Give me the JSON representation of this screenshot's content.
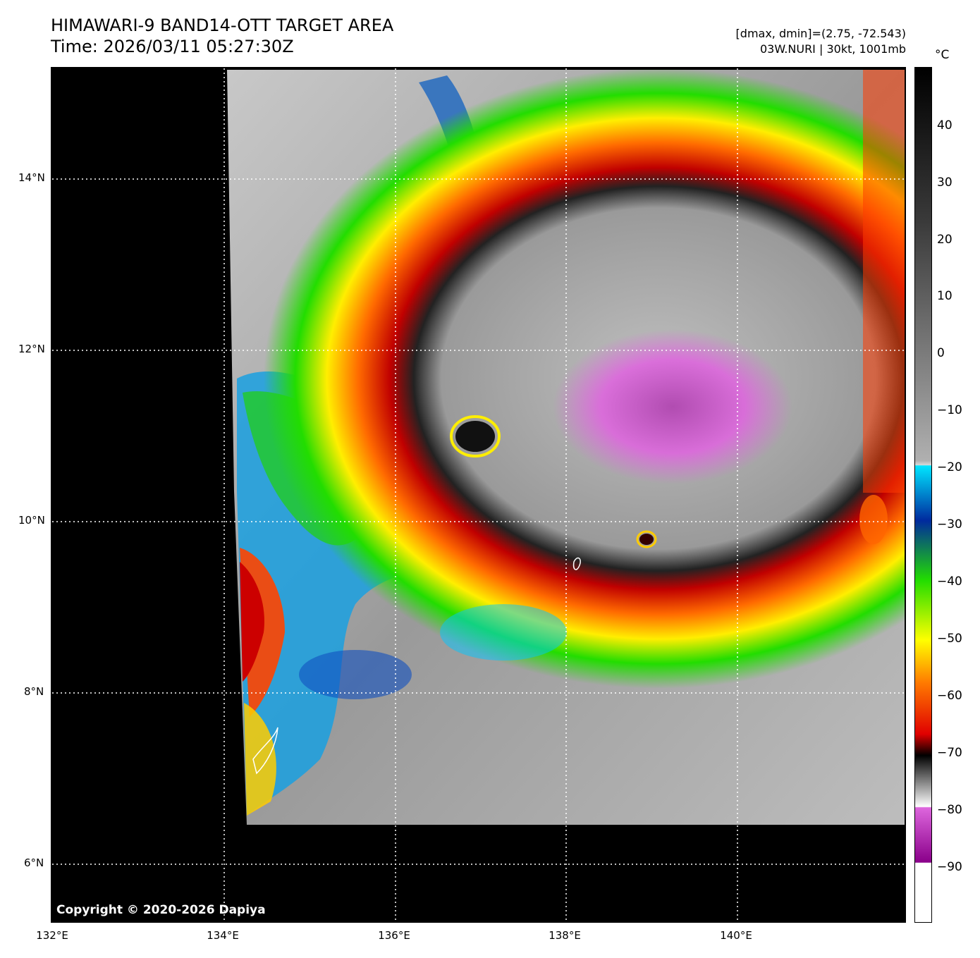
{
  "header": {
    "title": "HIMAWARI-9 BAND14-OTT TARGET AREA",
    "time": "Time: 2026/03/11 05:27:30Z",
    "dmax_dmin": "[dmax, dmin]=(2.75, -72.543)",
    "storm": "03W.NURI | 30kt, 1001mb"
  },
  "map": {
    "lat_labels": [
      "14°N",
      "12°N",
      "10°N",
      "8°N",
      "6°N"
    ],
    "lon_labels": [
      "132°E",
      "134°E",
      "136°E",
      "138°E",
      "140°E"
    ],
    "copyright": "Copyright © 2020-2026 Dapiya"
  },
  "colorbar": {
    "unit": "°C",
    "ticks": [
      "40",
      "30",
      "20",
      "10",
      "0",
      "−10",
      "−20",
      "−30",
      "−40",
      "−50",
      "−60",
      "−70",
      "−80",
      "−90"
    ],
    "colors": {
      "warm_black": "#000000",
      "gray": "#b0b0b0",
      "cyan": "#00e5ff",
      "blue": "#002a9e",
      "green": "#22dd00",
      "yellow": "#ffff00",
      "orange": "#ff7a00",
      "red": "#e00000",
      "pink": "#dd66dd",
      "purple": "#8a008a",
      "white": "#ffffff"
    }
  }
}
